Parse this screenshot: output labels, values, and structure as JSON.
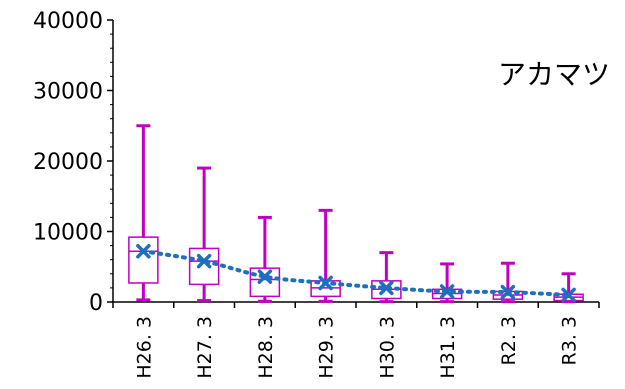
{
  "chart_data": {
    "type": "box",
    "categories": [
      "H26. 3",
      "H27. 3",
      "H28. 3",
      "H29. 3",
      "H30. 3",
      "H31. 3",
      "R2. 3",
      "R3. 3"
    ],
    "ylim": [
      0,
      40000
    ],
    "yticks": [
      "0",
      "10000",
      "20000",
      "30000",
      "40000"
    ],
    "annotation": "アカマツ",
    "grid": false,
    "colors": {
      "box": "#c000c0",
      "mean": "#1f6fbf"
    },
    "boxes": [
      {
        "min": 300,
        "q1": 2700,
        "median": 7200,
        "q3": 9200,
        "max": 25000,
        "mean": 7200
      },
      {
        "min": 200,
        "q1": 2500,
        "median": 5800,
        "q3": 7600,
        "max": 19000,
        "mean": 5800
      },
      {
        "min": 100,
        "q1": 800,
        "median": 3200,
        "q3": 4800,
        "max": 12000,
        "mean": 3600
      },
      {
        "min": 100,
        "q1": 800,
        "median": 2000,
        "q3": 3000,
        "max": 13000,
        "mean": 2700
      },
      {
        "min": 50,
        "q1": 500,
        "median": 1800,
        "q3": 3000,
        "max": 7000,
        "mean": 2000
      },
      {
        "min": 50,
        "q1": 500,
        "median": 1200,
        "q3": 1800,
        "max": 5400,
        "mean": 1500
      },
      {
        "min": 50,
        "q1": 400,
        "median": 1000,
        "q3": 1500,
        "max": 5500,
        "mean": 1400
      },
      {
        "min": 50,
        "q1": 200,
        "median": 700,
        "q3": 1100,
        "max": 4000,
        "mean": 1000
      }
    ]
  }
}
